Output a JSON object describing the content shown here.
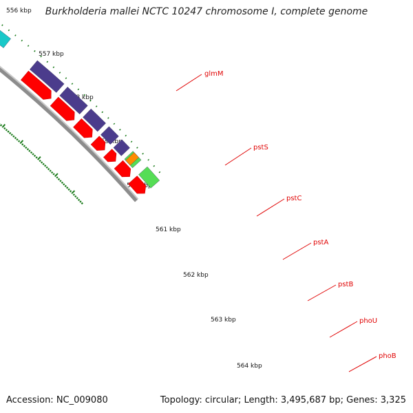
{
  "title": "Burkholderia mallei NCTC 10247 chromosome I, complete genome",
  "footer": {
    "accession": "Accession: NC_009080",
    "topology": "Topology: circular; Length: 3,495,687 bp; Genes: 3,325"
  },
  "scale_labels": [
    "556 kbp",
    "557 kbp",
    "558 kbp",
    "559 kbp",
    "560 kbp",
    "561 kbp",
    "562 kbp",
    "563 kbp",
    "564 kbp"
  ],
  "gene_labels": [
    "glmM",
    "pstS",
    "pstC",
    "pstA",
    "pstB",
    "phoU",
    "phoB"
  ],
  "colors": {
    "cds": "#ff0000",
    "backbone": "#8c8c8c",
    "tick": "#1a7a1a",
    "label": "#e00000",
    "cog_olive": "#b8ad7a",
    "cog_blue": "#0000ee",
    "cog_cyan": "#19c8c8",
    "cog_purple": "#4b3c8c",
    "cog_orange": "#ff8c00",
    "cog_green": "#55dd55"
  }
}
